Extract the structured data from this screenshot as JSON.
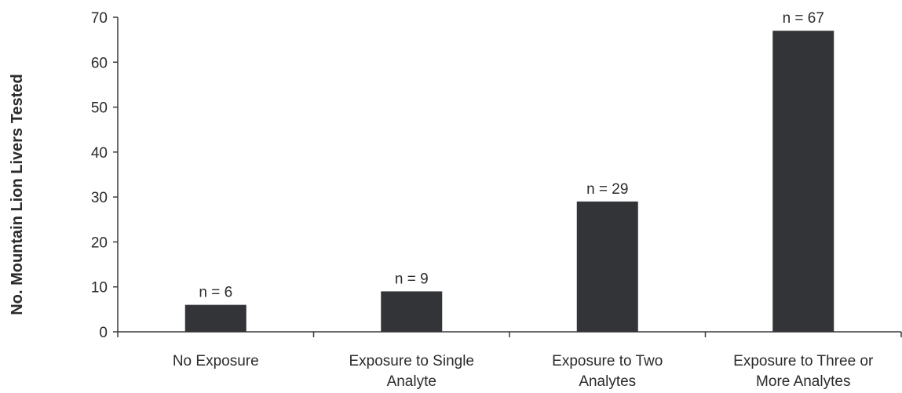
{
  "chart_data": {
    "type": "bar",
    "title": "",
    "xlabel": "",
    "ylabel": "No. Mountain Lion Livers Tested",
    "ylim": [
      0,
      70
    ],
    "yticks": [
      0,
      10,
      20,
      30,
      40,
      50,
      60,
      70
    ],
    "grid": false,
    "categories": [
      [
        "No Exposure"
      ],
      [
        "Exposure to Single",
        "Analyte"
      ],
      [
        "Exposure to Two",
        "Analytes"
      ],
      [
        "Exposure to Three or",
        "More Analytes"
      ]
    ],
    "values": [
      6,
      9,
      29,
      67
    ],
    "data_labels": [
      "n = 6",
      "n = 9",
      "n = 29",
      "n = 67"
    ],
    "colors": {
      "bar": "#333438",
      "axis": "#3a3a3a",
      "text": "#2b2b2b"
    }
  }
}
